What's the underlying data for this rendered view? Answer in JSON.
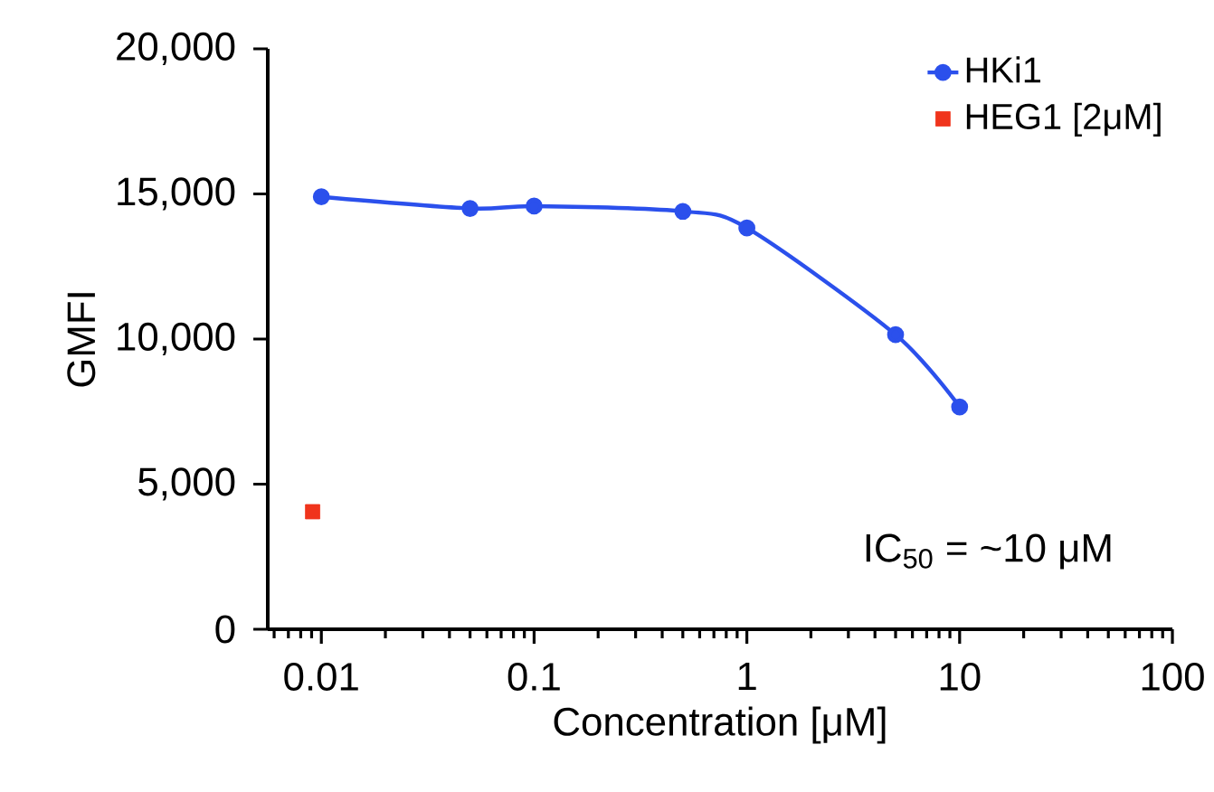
{
  "chart_data": {
    "type": "line",
    "xlabel": "Concentration [μM]",
    "ylabel": "GMFI",
    "log": "x",
    "legend": "top right",
    "xlim": [
      0.0056,
      100
    ],
    "xticks": [
      0.01,
      0.1,
      1,
      10,
      100
    ],
    "ylim": [
      0,
      20000
    ],
    "yticks": [
      0,
      {
        "value": 5000,
        "label": "5,000"
      },
      {
        "value": 10000,
        "label": "10,000"
      },
      {
        "value": 15000,
        "label": "15,000"
      },
      {
        "value": 20000,
        "label": "20,000"
      }
    ],
    "series": [
      {
        "name": "HKi1",
        "marker": "circle",
        "color": "#2b50ec",
        "x": [
          0.01,
          0.05,
          0.1,
          0.5,
          1,
          5,
          10
        ],
        "values": [
          14900,
          14500,
          14580,
          14400,
          13830,
          10150,
          7660
        ]
      },
      {
        "name": "HEG1 [2μM]",
        "type": "scatter",
        "marker": "square",
        "color": "#f0341c",
        "x": [
          0.0091
        ],
        "values": [
          4050
        ]
      }
    ],
    "annotations": [
      "IC$_{50}$ = ~10 μM"
    ]
  }
}
